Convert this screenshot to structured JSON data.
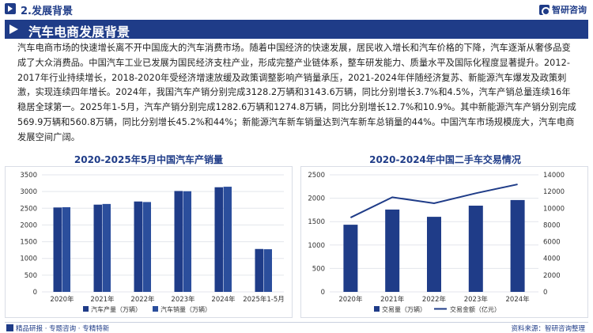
{
  "header": {
    "section": "2.发展背景",
    "brand": "智研咨询"
  },
  "banner": {
    "title": "汽车电商发展背景"
  },
  "body": "汽车电商市场的快速增长离不开中国庞大的汽车消费市场。随着中国经济的快速发展，居民收入增长和汽车价格的下降，汽车逐渐从奢侈品变成了大众消费品。中国汽车工业已发展为国民经济支柱产业，形成完整产业链体系，整车研发能力、质量水平及国际化程度显著提升。2012-2017年行业持续增长，2018-2020年受经济增速放缓及政策调整影响产销量承压，2021-2024年伴随经济复苏、新能源汽车爆发及政策刺激，实现连续四年增长。2024年，我国汽车产销分别完成3128.2万辆和3143.6万辆，同比分别增长3.7%和4.5%，汽车产销总量连续16年稳居全球第一。2025年1-5月，汽车产销分别完成1282.6万辆和1274.8万辆，同比分别增长12.7%和10.9%。其中新能源汽车产销分别完成569.9万辆和560.8万辆，同比分别增长45.2%和44%；新能源汽车新车销量达到汽车新车总销量的44%。中国汽车市场规模庞大，汽车电商发展空间广阔。",
  "charts": {
    "left_title": "2020-2025年5月中国汽车产销量",
    "right_title": "2020-2024年中国二手车交易情况"
  },
  "chart_data": [
    {
      "type": "bar",
      "title": "2020-2025年5月中国汽车产销量",
      "categories": [
        "2020年",
        "2021年",
        "2022年",
        "2023年",
        "2024年",
        "2025年1-5月"
      ],
      "series": [
        {
          "name": "汽车产量（万辆）",
          "values": [
            2523,
            2608,
            2702,
            3016,
            3128.2,
            1282.6
          ],
          "color": "#1f3c88"
        },
        {
          "name": "汽车销量（万辆）",
          "values": [
            2531,
            2628,
            2686,
            3009,
            3143.6,
            1274.8
          ],
          "color": "#2b4e9c"
        }
      ],
      "y_ticks": [
        "0",
        "500",
        "1000",
        "1500",
        "2000",
        "2500",
        "3000",
        "3500"
      ],
      "ylim": [
        0,
        3500
      ],
      "legend": "bottom"
    },
    {
      "type": "bar+line",
      "title": "2020-2024年中国二手车交易情况",
      "categories": [
        "2020年",
        "2021年",
        "2022年",
        "2023年",
        "2024年"
      ],
      "series": [
        {
          "name": "交易量（万辆）",
          "type": "bar",
          "axis": "left",
          "values": [
            1434,
            1758,
            1603,
            1841,
            1961
          ],
          "color": "#1f3c88"
        },
        {
          "name": "交易金额（亿元）",
          "type": "line",
          "axis": "right",
          "values": [
            8888,
            11317,
            10595,
            11796,
            12857
          ],
          "color": "#1f3c88"
        }
      ],
      "y_ticks": [
        "0",
        "500",
        "1000",
        "1500",
        "2000",
        "2500"
      ],
      "ylim": [
        0,
        2500
      ],
      "y2_ticks": [
        "0",
        "2000",
        "4000",
        "6000",
        "8000",
        "10000",
        "12000",
        "14000"
      ],
      "y2lim": [
        0,
        14000
      ],
      "legend": "bottom"
    }
  ],
  "footer": {
    "left": "精品研报 · 专题咨询 · 专精特新",
    "right": "资料来源：智研咨询整理"
  }
}
